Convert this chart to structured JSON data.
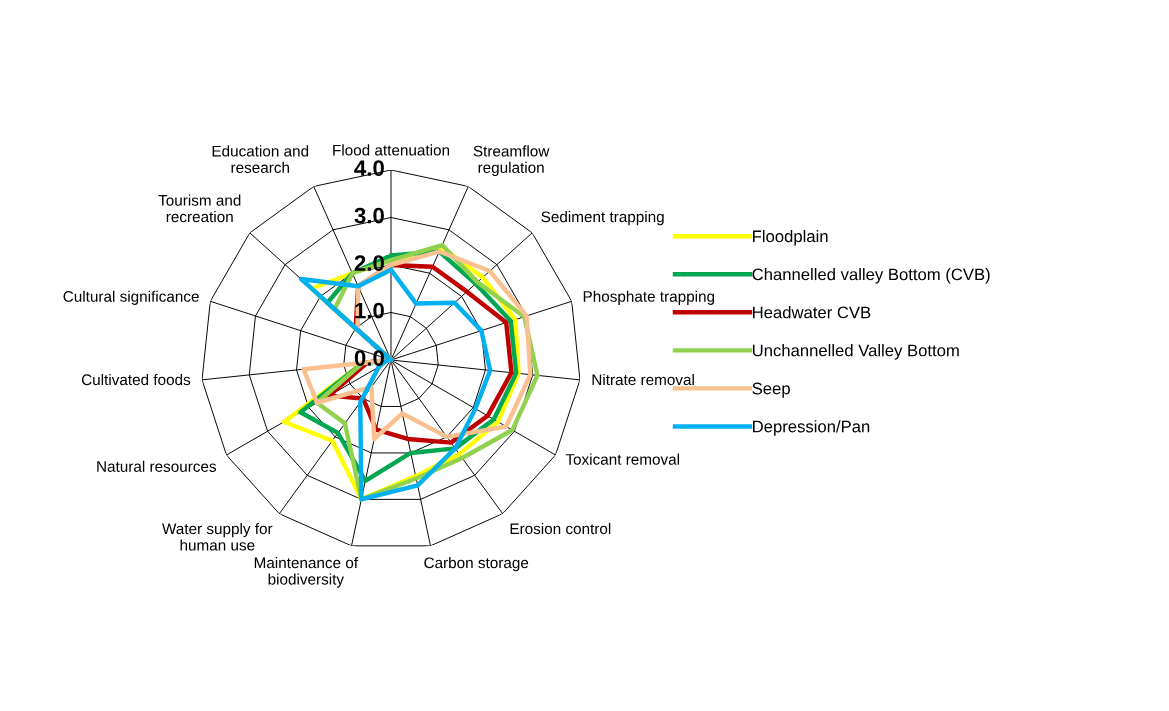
{
  "chart_data": {
    "type": "radar",
    "categories": [
      "Flood attenuation",
      "Streamflow\nregulation",
      "Sediment trapping",
      "Phosphate trapping",
      "Nitrate removal",
      "Toxicant removal",
      "Erosion control",
      "Carbon storage",
      "Maintenance of\nbiodiversity",
      "Water supply for\nhuman use",
      "Natural resources",
      "Cultivated foods",
      "Cultural significance",
      "Tourism and\nrecreation",
      "Education and\nresearch"
    ],
    "series": [
      {
        "name": "Floodplain",
        "color": "#ffff00",
        "values": [
          2.1,
          2.6,
          2.6,
          2.75,
          2.7,
          2.6,
          2.45,
          2.5,
          3.0,
          2.1,
          2.6,
          0.6,
          0,
          2.25,
          2.0
        ]
      },
      {
        "name": "Channelled valley Bottom (CVB)",
        "color": "#00a650",
        "values": [
          2.2,
          2.5,
          2.4,
          2.65,
          2.65,
          2.5,
          2.3,
          2.0,
          2.6,
          1.9,
          2.2,
          0.6,
          0,
          1.8,
          2.0
        ]
      },
      {
        "name": "Headwater CVB",
        "color": "#c00000",
        "values": [
          2.0,
          2.15,
          2.15,
          2.55,
          2.55,
          2.35,
          2.15,
          1.7,
          1.5,
          1.0,
          1.5,
          0.5,
          0,
          1.0,
          1.7
        ]
      },
      {
        "name": "Unchannelled Valley Bottom",
        "color": "#92d050",
        "values": [
          2.1,
          2.65,
          2.45,
          2.95,
          3.1,
          2.95,
          2.55,
          2.55,
          3.0,
          1.65,
          1.8,
          0.6,
          0,
          1.6,
          2.0
        ]
      },
      {
        "name": "Seep",
        "color": "#fac090",
        "values": [
          2.0,
          2.5,
          2.8,
          3.0,
          2.95,
          2.8,
          2.0,
          1.15,
          1.7,
          0.7,
          1.8,
          1.85,
          0,
          0.95,
          1.7
        ]
      },
      {
        "name": "Depression/Pan",
        "color": "#00b0f0",
        "values": [
          1.9,
          1.3,
          1.8,
          2.0,
          2.1,
          2.05,
          2.3,
          2.7,
          3.0,
          1.1,
          0.3,
          0.1,
          0,
          2.55,
          1.7
        ]
      }
    ],
    "ylim": [
      0,
      4
    ],
    "yticks": [
      {
        "value": 0,
        "label": "0.0"
      },
      {
        "value": 1,
        "label": "1.0"
      },
      {
        "value": 2,
        "label": "2.0"
      },
      {
        "value": 3,
        "label": "3.0"
      },
      {
        "value": 4,
        "label": "4.0"
      }
    ],
    "legend": "right",
    "grid": true
  }
}
